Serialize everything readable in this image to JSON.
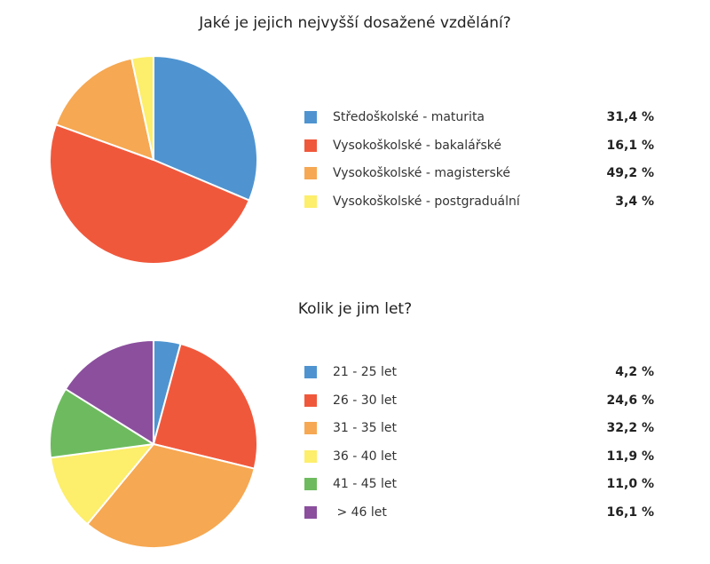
{
  "chart_data": [
    {
      "type": "pie",
      "title": "Jaké je jejich nejvyšší dosažené vzdělání?",
      "categories": [
        "Středoškolské - maturita",
        "Vysokoškolské - bakalářské",
        "Vysokoškolské - magisterské",
        "Vysokoškolské - postgraduální"
      ],
      "values": [
        31.4,
        16.1,
        49.2,
        3.4
      ],
      "value_labels": [
        "31,4 %",
        "16,1 %",
        "49,2 %",
        "3,4 %"
      ],
      "slice_values": [
        31.4,
        49.2,
        16.1,
        3.4
      ],
      "slice_colors": [
        "#4F94D0",
        "#F0583C",
        "#F6A852",
        "#FDEE6B"
      ],
      "colors": [
        "#4F94D0",
        "#F0583C",
        "#F6A852",
        "#FDEE6B"
      ],
      "legend_position": "right"
    },
    {
      "type": "pie",
      "title": "Kolik je jim let?",
      "categories": [
        "21 - 25 let",
        "26 - 30 let",
        "31 - 35 let",
        "36 - 40 let",
        "41 - 45 let",
        " > 46 let"
      ],
      "values": [
        4.2,
        24.6,
        32.2,
        11.9,
        11.0,
        16.1
      ],
      "value_labels": [
        "4,2 %",
        "24,6 %",
        "32,2 %",
        "11,9 %",
        "11,0 %",
        "16,1 %"
      ],
      "slice_values": [
        4.2,
        24.6,
        32.2,
        11.9,
        11.0,
        16.1
      ],
      "slice_colors": [
        "#4F94D0",
        "#F0583C",
        "#F6A852",
        "#FDEE6B",
        "#6DBB5E",
        "#8B4F9E"
      ],
      "colors": [
        "#4F94D0",
        "#F0583C",
        "#F6A852",
        "#FDEE6B",
        "#6DBB5E",
        "#8B4F9E"
      ],
      "legend_position": "right"
    }
  ]
}
